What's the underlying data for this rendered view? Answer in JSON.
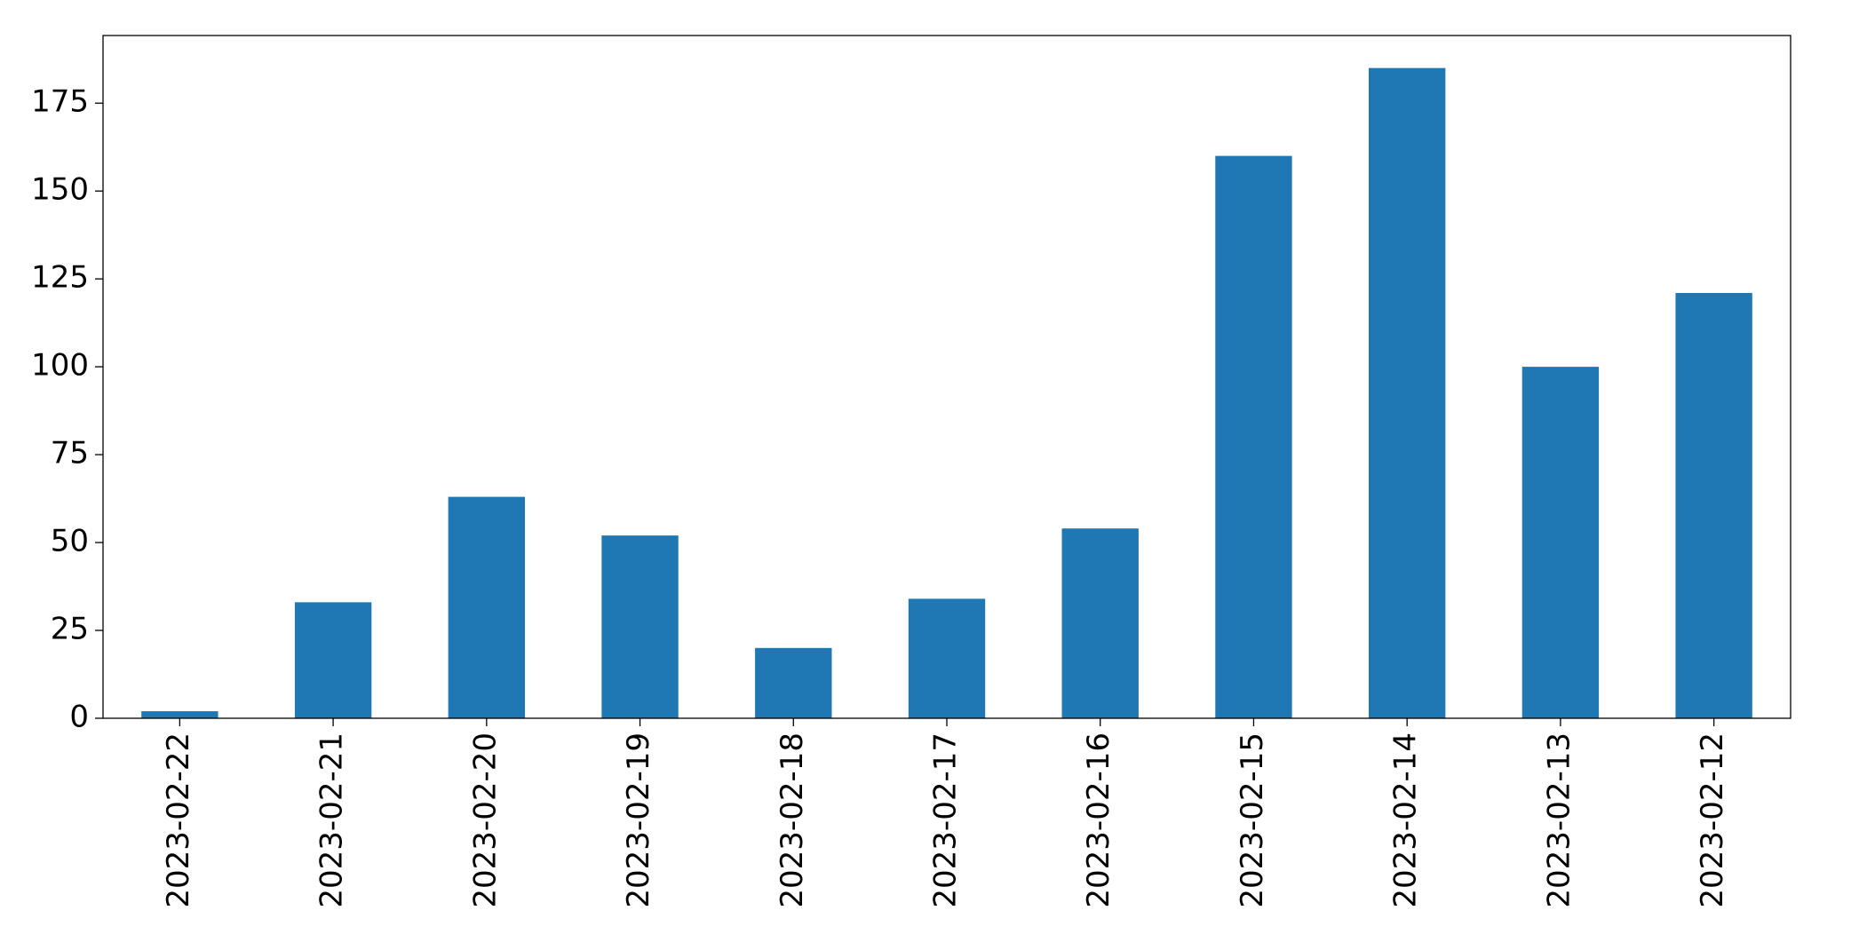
{
  "chart_data": {
    "type": "bar",
    "categories": [
      "2023-02-22",
      "2023-02-21",
      "2023-02-20",
      "2023-02-19",
      "2023-02-18",
      "2023-02-17",
      "2023-02-16",
      "2023-02-15",
      "2023-02-14",
      "2023-02-13",
      "2023-02-12"
    ],
    "values": [
      2,
      33,
      63,
      52,
      20,
      34,
      54,
      160,
      185,
      100,
      121
    ],
    "color": "#1f77b4",
    "ylim": [
      0,
      194.25
    ],
    "yticks": [
      0,
      25,
      50,
      75,
      100,
      125,
      150,
      175
    ],
    "grid": false
  }
}
